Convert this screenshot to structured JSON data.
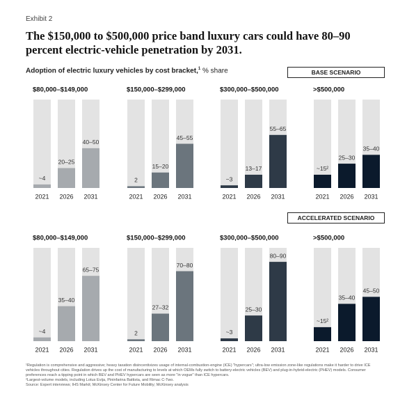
{
  "exhibit": "Exhibit 2",
  "title": "The $150,000 to $500,000 price band luxury cars could have 80–90 percent electric-vehicle penetration by 2031.",
  "subtitle": "Adoption of electric luxury vehicles by cost bracket,",
  "subtitle_note": "1",
  "subtitle_unit": "% share",
  "scenarios": [
    "BASE SCENARIO",
    "ACCELERATED SCENARIO"
  ],
  "chart_data": [
    {
      "type": "bar",
      "title": "$80,000–$149,000",
      "categories": [
        "2021",
        "2026",
        "2031"
      ],
      "values": [
        4,
        22.5,
        45
      ],
      "value_labels": [
        "~4",
        "20–25",
        "40–50"
      ],
      "color": "#a6aaae",
      "ylim": [
        0,
        100
      ]
    },
    {
      "type": "bar",
      "title": "$150,000–$299,000",
      "categories": [
        "2021",
        "2026",
        "2031"
      ],
      "values": [
        2,
        17.5,
        50
      ],
      "value_labels": [
        "2",
        "15–20",
        "45–55"
      ],
      "color": "#6b757d",
      "ylim": [
        0,
        100
      ]
    },
    {
      "type": "bar",
      "title": "$300,000–$500,000",
      "categories": [
        "2021",
        "2026",
        "2031"
      ],
      "values": [
        3,
        15,
        60
      ],
      "value_labels": [
        "~3",
        "13–17",
        "55–65"
      ],
      "color": "#2e3a47",
      "ylim": [
        0,
        100
      ]
    },
    {
      "type": "bar",
      "title": ">$500,000",
      "categories": [
        "2021",
        "2026",
        "2031"
      ],
      "values": [
        15,
        27.5,
        37.5
      ],
      "value_labels": [
        "~15²",
        "25–30",
        "35–40"
      ],
      "color": "#0b1a2c",
      "ylim": [
        0,
        100
      ]
    },
    {
      "type": "bar",
      "title": "$80,000–$149,000",
      "categories": [
        "2021",
        "2026",
        "2031"
      ],
      "values": [
        4,
        37.5,
        70
      ],
      "value_labels": [
        "~4",
        "35–40",
        "65–75"
      ],
      "color": "#a6aaae",
      "ylim": [
        0,
        100
      ]
    },
    {
      "type": "bar",
      "title": "$150,000–$299,000",
      "categories": [
        "2021",
        "2026",
        "2031"
      ],
      "values": [
        2,
        29.5,
        75
      ],
      "value_labels": [
        "2",
        "27–32",
        "70–80"
      ],
      "color": "#6b757d",
      "ylim": [
        0,
        100
      ]
    },
    {
      "type": "bar",
      "title": "$300,000–$500,000",
      "categories": [
        "2021",
        "2026",
        "2031"
      ],
      "values": [
        3,
        27.5,
        85
      ],
      "value_labels": [
        "~3",
        "25–30",
        "80–90"
      ],
      "color": "#2e3a47",
      "ylim": [
        0,
        100
      ]
    },
    {
      "type": "bar",
      "title": ">$500,000",
      "categories": [
        "2021",
        "2026",
        "2031"
      ],
      "values": [
        15,
        40,
        47.5
      ],
      "value_labels": [
        "~15²",
        "35–40",
        "45–50"
      ],
      "color": "#0b1a2c",
      "ylim": [
        0,
        100
      ]
    }
  ],
  "footnotes": [
    "¹Regulation is comprehensive and aggressive; heavy taxation disincentivizes usage of internal-combustion-engine (ICE) \"hypercars\"; ultra-low emission zone-like regulations make it harder to drive ICE vehicles throughout cities. Regulation drives up the cost of manufacturing to levels at which OEMs fully switch to battery-electric vehicles (BEV) and plug-in-hybrid-electric (PHEV) models. Consumer preferences reach a tipping point in which BEV and PHEV hypercars are seen as more \"in vogue\" than ICE hypercars.",
    "²Largest-volume models, including Lotus Evija, Pininfarina Battista, and Rimac C-Two.",
    "Source: Expert interviews; IHS Markit; McKinsey Center for Future Mobility; McKinsey analysis"
  ]
}
